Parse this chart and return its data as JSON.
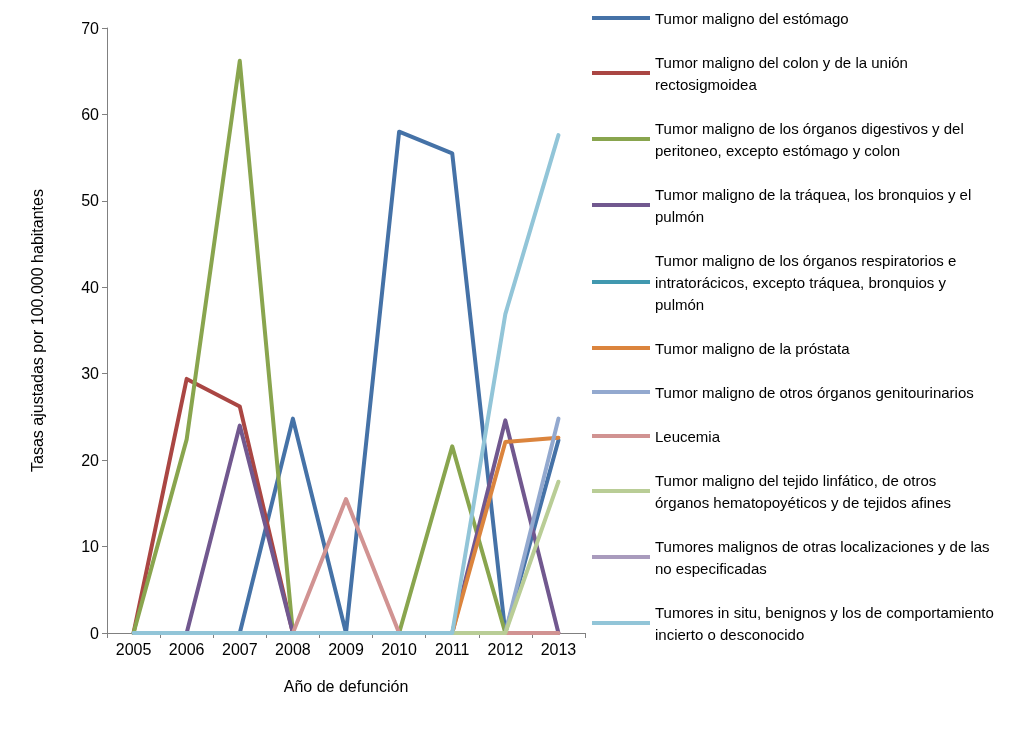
{
  "chart_data": {
    "type": "line",
    "xlabel": "Año de defunción",
    "ylabel": "Tasas ajustadas por 100.000 habitantes",
    "categories": [
      "2005",
      "2006",
      "2007",
      "2008",
      "2009",
      "2010",
      "2011",
      "2012",
      "2013"
    ],
    "ylim": [
      0,
      70
    ],
    "yticks": [
      0,
      10,
      20,
      30,
      40,
      50,
      60,
      70
    ],
    "grid": false,
    "legend": "right",
    "marker": "none",
    "line_style": "solid",
    "series": [
      {
        "name": "Tumor maligno del estómago",
        "color": "#4572a7",
        "values": [
          null,
          null,
          0,
          24.8,
          0,
          58,
          55.5,
          0,
          22.3
        ]
      },
      {
        "name": "Tumor maligno del colon y de la unión rectosigmoidea",
        "color": "#aa4643",
        "values": [
          0,
          29.4,
          26.2,
          0,
          null,
          null,
          null,
          null,
          null
        ]
      },
      {
        "name": "Tumor maligno de los órganos digestivos y del peritoneo, excepto estómago y colon",
        "color": "#89a54e",
        "values": [
          0,
          22.4,
          66.2,
          0,
          null,
          0,
          21.6,
          0,
          null
        ]
      },
      {
        "name": "Tumor maligno de la tráquea, los bronquios y el pulmón",
        "color": "#71588f",
        "values": [
          null,
          0,
          24,
          0,
          null,
          null,
          0,
          24.6,
          0
        ]
      },
      {
        "name": "Tumor maligno de los órganos respiratorios e intratorácicos, excepto tráquea, bronquios y pulmón",
        "color": "#4198af",
        "values": [
          null,
          null,
          null,
          null,
          null,
          null,
          null,
          null,
          null
        ]
      },
      {
        "name": "Tumor maligno de la próstata",
        "color": "#db843d",
        "values": [
          null,
          null,
          null,
          null,
          null,
          null,
          0,
          22.1,
          22.6
        ]
      },
      {
        "name": "Tumor maligno de otros órganos genitourinarios",
        "color": "#93a9cf",
        "values": [
          null,
          null,
          null,
          null,
          null,
          null,
          null,
          0,
          24.8
        ]
      },
      {
        "name": "Leucemia",
        "color": "#d19392",
        "values": [
          null,
          null,
          null,
          0,
          15.5,
          0,
          null,
          0,
          0
        ]
      },
      {
        "name": "Tumor maligno del tejido linfático, de otros órganos hematopoyéticos y de tejidos afines",
        "color": "#b9cd96",
        "values": [
          null,
          null,
          null,
          null,
          null,
          null,
          0,
          0,
          17.5
        ]
      },
      {
        "name": "Tumores malignos de otras localizaciones y de las no especificadas",
        "color": "#a99bbd",
        "values": [
          null,
          null,
          null,
          null,
          null,
          null,
          null,
          null,
          null
        ]
      },
      {
        "name": "Tumores in situ, benignos y los de comportamiento incierto o desconocido",
        "color": "#92c5d8",
        "values": [
          0,
          0,
          0,
          0,
          0,
          0,
          0,
          36.9,
          57.6
        ]
      }
    ]
  }
}
